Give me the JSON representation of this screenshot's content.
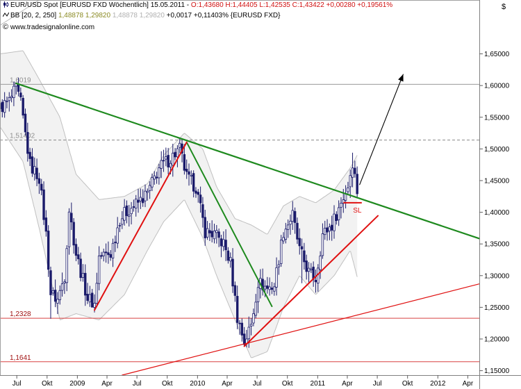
{
  "header": {
    "line1": {
      "name": "EUR/USD Spot [EURUSD FXD  Wöchentlich] 15.05.2011",
      "ohlc": "O:1,43680 H:1,44405 L:1,42535",
      "close": "C:1,43422 +0,00280 +0,19561%"
    },
    "line2": {
      "name": "BB [20, 2, 250]",
      "values": "1,48878 1,29820",
      "values2": "1,48878 1,29820",
      "change": "+0,0017 +0,11403% {EURUSD FXD}"
    },
    "line3": {
      "site": "www.tradesignalonline.com"
    }
  },
  "currency_symbol": "$",
  "colors": {
    "candle": "#1a1a6a",
    "support": "#e01010",
    "trend_green": "#1e8a1e",
    "band_line": "#c0c0c0",
    "level_red": "#d84040",
    "level_dashed": "#888888"
  },
  "chart_data": {
    "type": "candlestick",
    "x_tick_labels": [
      "Jul",
      "Okt",
      "2009",
      "Apr",
      "Jul",
      "Okt",
      "2010",
      "Apr",
      "Jul",
      "Okt",
      "2011",
      "Apr",
      "Jul",
      "Okt",
      "2012",
      "Apr"
    ],
    "y_tick_labels": [
      "1,15000",
      "1,20000",
      "1,25000",
      "1,30000",
      "1,35000",
      "1,40000",
      "1,45000",
      "1,50000",
      "1,55000",
      "1,60000",
      "1,65000"
    ],
    "ylim": [
      1.143,
      1.735
    ],
    "xlim": [
      "2008-05-25",
      "2012-05-20"
    ],
    "close_path": [
      [
        "2008-05-25",
        1.565
      ],
      [
        "2008-06-22",
        1.575
      ],
      [
        "2008-07-13",
        1.595
      ],
      [
        "2008-07-27",
        1.572
      ],
      [
        "2008-08-24",
        1.475
      ],
      [
        "2008-09-21",
        1.455
      ],
      [
        "2008-10-12",
        1.365
      ],
      [
        "2008-10-26",
        1.272
      ],
      [
        "2008-11-16",
        1.262
      ],
      [
        "2008-12-07",
        1.3
      ],
      [
        "2008-12-21",
        1.405
      ],
      [
        "2009-01-11",
        1.335
      ],
      [
        "2009-02-15",
        1.265
      ],
      [
        "2009-03-08",
        1.255
      ],
      [
        "2009-03-22",
        1.33
      ],
      [
        "2009-04-26",
        1.335
      ],
      [
        "2009-05-24",
        1.39
      ],
      [
        "2009-06-21",
        1.405
      ],
      [
        "2009-07-19",
        1.415
      ],
      [
        "2009-08-16",
        1.43
      ],
      [
        "2009-09-20",
        1.47
      ],
      [
        "2009-10-25",
        1.485
      ],
      [
        "2009-11-22",
        1.5
      ],
      [
        "2009-12-13",
        1.455
      ],
      [
        "2010-01-10",
        1.44
      ],
      [
        "2010-02-07",
        1.37
      ],
      [
        "2010-03-07",
        1.365
      ],
      [
        "2010-04-04",
        1.35
      ],
      [
        "2010-04-25",
        1.32
      ],
      [
        "2010-05-16",
        1.235
      ],
      [
        "2010-06-06",
        1.195
      ],
      [
        "2010-06-27",
        1.222
      ],
      [
        "2010-07-18",
        1.29
      ],
      [
        "2010-08-15",
        1.28
      ],
      [
        "2010-09-05",
        1.285
      ],
      [
        "2010-10-03",
        1.37
      ],
      [
        "2010-10-31",
        1.395
      ],
      [
        "2010-11-21",
        1.34
      ],
      [
        "2010-12-19",
        1.305
      ],
      [
        "2011-01-09",
        1.295
      ],
      [
        "2011-01-30",
        1.365
      ],
      [
        "2011-02-27",
        1.38
      ],
      [
        "2011-03-27",
        1.415
      ],
      [
        "2011-04-17",
        1.442
      ],
      [
        "2011-05-01",
        1.48
      ],
      [
        "2011-05-15",
        1.434
      ]
    ],
    "low_anchors": [
      [
        "2008-10-26",
        1.232
      ],
      [
        "2009-03-01",
        1.252
      ],
      [
        "2010-06-06",
        1.188
      ],
      [
        "2010-11-28",
        1.288
      ]
    ],
    "high_anchors": [
      [
        "2008-07-13",
        1.604
      ],
      [
        "2009-11-29",
        1.514
      ],
      [
        "2011-05-01",
        1.494
      ]
    ],
    "bollinger": {
      "upper": [
        [
          "2008-05-25",
          1.65
        ],
        [
          "2008-08-03",
          1.655
        ],
        [
          "2008-09-21",
          1.61
        ],
        [
          "2008-11-23",
          1.55
        ],
        [
          "2009-01-11",
          1.46
        ],
        [
          "2009-03-22",
          1.42
        ],
        [
          "2009-06-07",
          1.425
        ],
        [
          "2009-08-16",
          1.445
        ],
        [
          "2009-10-04",
          1.49
        ],
        [
          "2009-12-06",
          1.525
        ],
        [
          "2010-01-31",
          1.5
        ],
        [
          "2010-03-14",
          1.44
        ],
        [
          "2010-05-09",
          1.39
        ],
        [
          "2010-06-27",
          1.38
        ],
        [
          "2010-08-15",
          1.365
        ],
        [
          "2010-10-03",
          1.41
        ],
        [
          "2010-11-21",
          1.425
        ],
        [
          "2011-01-09",
          1.415
        ],
        [
          "2011-03-06",
          1.435
        ],
        [
          "2011-04-24",
          1.47
        ],
        [
          "2011-05-15",
          1.49
        ]
      ],
      "lower": [
        [
          "2008-05-25",
          1.535
        ],
        [
          "2008-08-03",
          1.48
        ],
        [
          "2008-09-21",
          1.375
        ],
        [
          "2008-11-23",
          1.23
        ],
        [
          "2009-01-11",
          1.24
        ],
        [
          "2009-03-22",
          1.23
        ],
        [
          "2009-06-07",
          1.27
        ],
        [
          "2009-08-16",
          1.34
        ],
        [
          "2009-10-04",
          1.385
        ],
        [
          "2009-12-06",
          1.42
        ],
        [
          "2010-01-31",
          1.36
        ],
        [
          "2010-03-14",
          1.3
        ],
        [
          "2010-05-09",
          1.23
        ],
        [
          "2010-06-27",
          1.17
        ],
        [
          "2010-08-15",
          1.18
        ],
        [
          "2010-10-03",
          1.25
        ],
        [
          "2010-11-21",
          1.3
        ],
        [
          "2011-01-09",
          1.27
        ],
        [
          "2011-03-06",
          1.3
        ],
        [
          "2011-04-24",
          1.34
        ],
        [
          "2011-05-15",
          1.298
        ]
      ]
    },
    "horizontal_levels": [
      {
        "label": "1,6019",
        "value": 1.6019,
        "style": "solid-gray"
      },
      {
        "label": "1,51402",
        "value": 1.51402,
        "style": "dashed-gray"
      },
      {
        "label": "1,2328",
        "value": 1.2328,
        "style": "solid-red"
      },
      {
        "label": "1,1641",
        "value": 1.1641,
        "style": "solid-red"
      }
    ],
    "trend_lines": [
      {
        "color": "green",
        "width": 2.2,
        "from": [
          "2008-07-13",
          1.6035
        ],
        "to": [
          "2012-05-20",
          1.3585
        ]
      },
      {
        "color": "green",
        "width": 2,
        "from": [
          "2009-12-13",
          1.5105
        ],
        "to": [
          "2010-08-29",
          1.2515
        ]
      },
      {
        "color": "red",
        "width": 2,
        "from": [
          "2009-03-08",
          1.2455
        ],
        "to": [
          "2009-12-13",
          1.5105
        ]
      },
      {
        "color": "red",
        "width": 2,
        "from": [
          "2010-06-06",
          1.1885
        ],
        "to": [
          "2011-07-17",
          1.3945
        ]
      },
      {
        "color": "red",
        "width": 1.2,
        "from": [
          "2009-05-31",
          1.143
        ],
        "to": [
          "2012-05-20",
          1.287
        ]
      },
      {
        "color": "gray",
        "width": 1,
        "from": [
          "2008-05-25",
          1.695
        ],
        "to": [
          "2008-09-21",
          1.735
        ]
      }
    ],
    "annotations": [
      {
        "type": "arrow",
        "from": [
          "2011-05-22",
          1.443
        ],
        "to": [
          "2011-10-02",
          1.618
        ]
      },
      {
        "type": "stop-loss",
        "label": "SL",
        "from": [
          "2011-04-03",
          1.415
        ],
        "to": [
          "2011-05-29",
          1.415
        ]
      }
    ]
  }
}
